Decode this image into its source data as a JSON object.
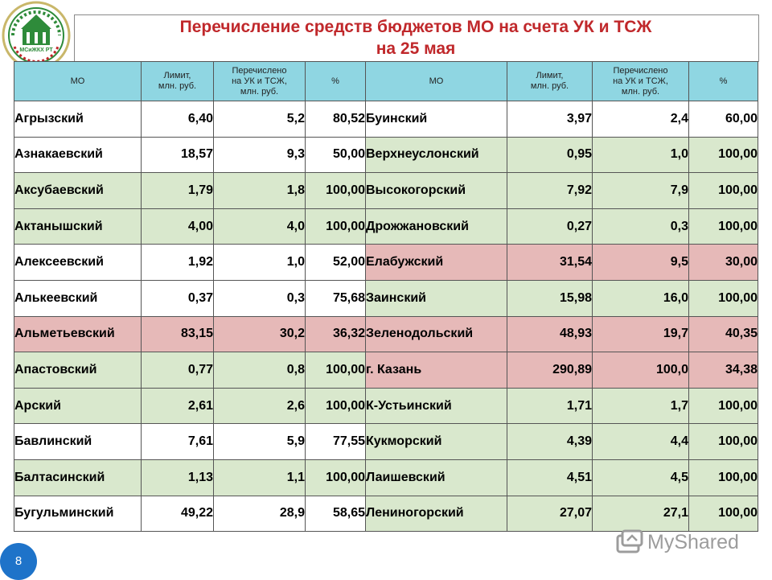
{
  "title": {
    "line1": "Перечисление средств бюджетов МО на счета УК и ТСЖ",
    "line2": "на 25 мая"
  },
  "logo": {
    "icon": "ministry-emblem-icon",
    "text": "МСиЖКХ РТ"
  },
  "table": {
    "headers": {
      "mo": "МО",
      "limit": "Лимит,\nмлн. руб.",
      "transferred": "Перечислено\nна УК и ТСЖ,\nмлн. руб.",
      "percent": "%"
    },
    "left": [
      {
        "name": "Агрызский",
        "limit": "6,40",
        "transferred": "5,2",
        "percent": "80,52",
        "status": "white"
      },
      {
        "name": "Азнакаевский",
        "limit": "18,57",
        "transferred": "9,3",
        "percent": "50,00",
        "status": "white"
      },
      {
        "name": "Аксубаевский",
        "limit": "1,79",
        "transferred": "1,8",
        "percent": "100,00",
        "status": "green"
      },
      {
        "name": "Актанышский",
        "limit": "4,00",
        "transferred": "4,0",
        "percent": "100,00",
        "status": "green"
      },
      {
        "name": "Алексеевский",
        "limit": "1,92",
        "transferred": "1,0",
        "percent": "52,00",
        "status": "white"
      },
      {
        "name": "Алькеевский",
        "limit": "0,37",
        "transferred": "0,3",
        "percent": "75,68",
        "status": "white"
      },
      {
        "name": "Альметьевский",
        "limit": "83,15",
        "transferred": "30,2",
        "percent": "36,32",
        "status": "red"
      },
      {
        "name": "Апастовский",
        "limit": "0,77",
        "transferred": "0,8",
        "percent": "100,00",
        "status": "green"
      },
      {
        "name": "Арский",
        "limit": "2,61",
        "transferred": "2,6",
        "percent": "100,00",
        "status": "green"
      },
      {
        "name": "Бавлинский",
        "limit": "7,61",
        "transferred": "5,9",
        "percent": "77,55",
        "status": "white"
      },
      {
        "name": "Балтасинский",
        "limit": "1,13",
        "transferred": "1,1",
        "percent": "100,00",
        "status": "green"
      },
      {
        "name": "Бугульминский",
        "limit": "49,22",
        "transferred": "28,9",
        "percent": "58,65",
        "status": "white"
      }
    ],
    "right": [
      {
        "name": "Буинский",
        "limit": "3,97",
        "transferred": "2,4",
        "percent": "60,00",
        "status": "white"
      },
      {
        "name": "Верхнеуслонский",
        "limit": "0,95",
        "transferred": "1,0",
        "percent": "100,00",
        "status": "green"
      },
      {
        "name": "Высокогорский",
        "limit": "7,92",
        "transferred": "7,9",
        "percent": "100,00",
        "status": "green"
      },
      {
        "name": "Дрожжановский",
        "limit": "0,27",
        "transferred": "0,3",
        "percent": "100,00",
        "status": "green"
      },
      {
        "name": "Елабужский",
        "limit": "31,54",
        "transferred": "9,5",
        "percent": "30,00",
        "status": "red"
      },
      {
        "name": "Заинский",
        "limit": "15,98",
        "transferred": "16,0",
        "percent": "100,00",
        "status": "green"
      },
      {
        "name": "Зеленодольский",
        "limit": "48,93",
        "transferred": "19,7",
        "percent": "40,35",
        "status": "red"
      },
      {
        "name": "г. Казань",
        "limit": "290,89",
        "transferred": "100,0",
        "percent": "34,38",
        "status": "red"
      },
      {
        "name": "К-Устьинский",
        "limit": "1,71",
        "transferred": "1,7",
        "percent": "100,00",
        "status": "green"
      },
      {
        "name": "Кукморский",
        "limit": "4,39",
        "transferred": "4,4",
        "percent": "100,00",
        "status": "green"
      },
      {
        "name": "Лаишевский",
        "limit": "4,51",
        "transferred": "4,5",
        "percent": "100,00",
        "status": "green"
      },
      {
        "name": "Лениногорский",
        "limit": "27,07",
        "transferred": "27,1",
        "percent": "100,00",
        "status": "green"
      }
    ]
  },
  "colors": {
    "title": "#c0282b",
    "header": "#8fd6e2",
    "green": "#d9e8cd",
    "red": "#e6b9b8",
    "page_badge": "#1e73c9"
  },
  "page_number": "8",
  "watermark": {
    "icon": "myshared-logo-icon",
    "text": "MyShared"
  }
}
